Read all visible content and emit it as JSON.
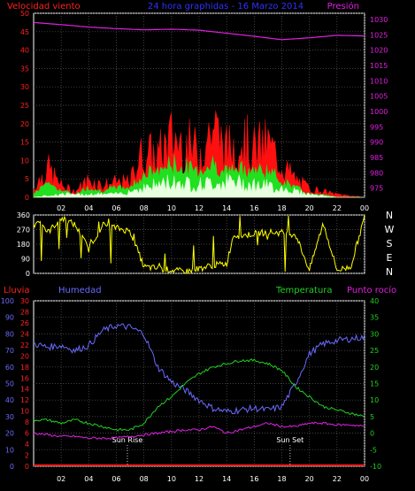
{
  "colors": {
    "background": "#000000",
    "frame": "#ffffff",
    "grid": "#5a5a5a",
    "wind_gust": "#ff1010",
    "wind_avg": "#20e020",
    "wind_min": "#e8ffe0",
    "pressure": "#e020e0",
    "direction": "#ffff00",
    "humidity": "#6a6aff",
    "temperature": "#20d020",
    "dewpoint": "#e020e0",
    "rain": "#ff2020",
    "sun_marker": "#ffffff"
  },
  "chart_data": [
    {
      "type": "line",
      "title": "24 hora graphidas - 16 Marzo 2014",
      "left_axis_label": "Velocidad viento",
      "right_axis_label": "Presión",
      "x_ticks": [
        "02",
        "04",
        "06",
        "08",
        "10",
        "12",
        "14",
        "16",
        "18",
        "20",
        "22",
        "00"
      ],
      "x_range": [
        0,
        24
      ],
      "left_ylim": [
        0,
        50
      ],
      "left_ticks": [
        "0",
        "5",
        "10",
        "15",
        "20",
        "25",
        "30",
        "35",
        "40",
        "45",
        "50"
      ],
      "right_ylim": [
        972,
        1032
      ],
      "right_ticks": [
        "975",
        "980",
        "985",
        "990",
        "995",
        "1000",
        "1005",
        "1010",
        "1015",
        "1020",
        "1025",
        "1030"
      ],
      "series": [
        {
          "name": "Presión",
          "axis": "right",
          "x": [
            0,
            2,
            4,
            6,
            8,
            10,
            12,
            14,
            16,
            18,
            20,
            22,
            24
          ],
          "y": [
            1029,
            1028.3,
            1027.5,
            1027,
            1026.6,
            1026.8,
            1026.5,
            1025.5,
            1024.5,
            1023.4,
            1024,
            1024.8,
            1024.6
          ]
        },
        {
          "name": "gust",
          "axis": "left",
          "x": [
            0,
            1,
            2,
            3,
            4,
            5,
            6,
            7,
            7.5,
            8,
            9,
            10,
            11,
            12,
            13,
            14,
            15,
            16,
            17,
            18,
            19,
            20,
            21,
            22,
            24
          ],
          "y": [
            3,
            10,
            4,
            2,
            6,
            4,
            5,
            5,
            12,
            15,
            14,
            20,
            18,
            15,
            24,
            16,
            20,
            16,
            18,
            11,
            6,
            3,
            2,
            1,
            0
          ]
        },
        {
          "name": "avg",
          "axis": "left",
          "x": [
            0,
            1,
            2,
            3,
            4,
            5,
            6,
            7,
            8,
            9,
            10,
            11,
            12,
            13,
            14,
            15,
            16,
            17,
            18,
            19,
            20,
            21,
            22,
            24
          ],
          "y": [
            1,
            5,
            2,
            1,
            3,
            2,
            3,
            3,
            7,
            8,
            10,
            9,
            8,
            10,
            8,
            9,
            8,
            8,
            5,
            3,
            1,
            1,
            0,
            0
          ]
        },
        {
          "name": "min",
          "axis": "left",
          "x": [
            0,
            2,
            4,
            6,
            8,
            10,
            12,
            14,
            16,
            18,
            20,
            22,
            24
          ],
          "y": [
            0,
            1,
            1,
            1,
            3,
            5,
            4,
            5,
            4,
            3,
            1,
            0,
            0
          ]
        }
      ]
    },
    {
      "type": "line",
      "right_axis_label": "N W S E N",
      "x_ticks": [
        "02",
        "04",
        "06",
        "08",
        "10",
        "12",
        "14",
        "16",
        "18",
        "20",
        "22",
        "00"
      ],
      "x_range": [
        0,
        24
      ],
      "ylim": [
        0,
        360
      ],
      "y_ticks": [
        "0",
        "90",
        "180",
        "270",
        "360"
      ],
      "series": [
        {
          "name": "direction",
          "x": [
            0,
            0.5,
            1,
            2,
            3,
            4,
            5,
            6,
            7,
            8,
            9,
            10,
            11,
            12,
            13,
            14,
            14.5,
            15,
            16,
            17,
            18,
            19,
            20,
            21,
            22,
            23,
            24
          ],
          "y": [
            300,
            330,
            250,
            340,
            300,
            150,
            300,
            280,
            260,
            40,
            30,
            20,
            10,
            30,
            50,
            60,
            240,
            230,
            245,
            255,
            250,
            240,
            20,
            310,
            20,
            40,
            350
          ]
        }
      ]
    },
    {
      "type": "line",
      "left_axis_labels": [
        "Lluvia",
        "Humedad"
      ],
      "right_axis_labels": [
        "Temperatura",
        "Punto rocío"
      ],
      "x_ticks": [
        "02",
        "04",
        "06",
        "08",
        "10",
        "12",
        "14",
        "16",
        "18",
        "20",
        "22",
        "00"
      ],
      "x_range": [
        0,
        24
      ],
      "humidity_ylim": [
        0,
        100
      ],
      "humidity_ticks": [
        "0",
        "10",
        "20",
        "30",
        "40",
        "50",
        "60",
        "70",
        "80",
        "90",
        "100"
      ],
      "rain_ylim": [
        0,
        30
      ],
      "rain_ticks": [
        "0",
        "2",
        "4",
        "6",
        "8",
        "10",
        "12",
        "14",
        "16",
        "18",
        "20",
        "22",
        "24",
        "26",
        "28",
        "30"
      ],
      "temp_ylim": [
        -10,
        40
      ],
      "temp_ticks": [
        "-10",
        "-5",
        "0",
        "5",
        "10",
        "15",
        "20",
        "25",
        "30",
        "35",
        "40"
      ],
      "annotations": [
        "Sun Rise",
        "Sun Set"
      ],
      "series": [
        {
          "name": "Humedad",
          "axis": "humidity",
          "x": [
            0,
            1,
            2,
            3,
            4,
            5,
            6,
            7,
            8,
            9,
            10,
            11,
            12,
            13,
            14,
            15,
            16,
            17,
            18,
            19,
            20,
            21,
            22,
            23,
            24
          ],
          "y": [
            74,
            72,
            73,
            70,
            73,
            82,
            85,
            84,
            80,
            60,
            51,
            46,
            40,
            35,
            33,
            34,
            35,
            34,
            36,
            50,
            68,
            74,
            76,
            77,
            78
          ]
        },
        {
          "name": "Temperatura",
          "axis": "temp",
          "x": [
            0,
            1,
            2,
            3,
            4,
            5,
            6,
            7,
            8,
            9,
            10,
            11,
            12,
            13,
            14,
            15,
            16,
            17,
            18,
            19,
            20,
            21,
            22,
            23,
            24
          ],
          "y": [
            4,
            4,
            3,
            4,
            3,
            2,
            1,
            1,
            3,
            8,
            11,
            15,
            18,
            20,
            21,
            22,
            22,
            21,
            19,
            14,
            11,
            8,
            7,
            6,
            5
          ]
        },
        {
          "name": "Punto rocío",
          "axis": "temp",
          "x": [
            0,
            1,
            2,
            3,
            4,
            5,
            6,
            7,
            8,
            9,
            10,
            11,
            12,
            13,
            14,
            15,
            16,
            17,
            18,
            19,
            20,
            21,
            22,
            23,
            24
          ],
          "y": [
            0,
            -0.5,
            -1,
            -1,
            -1.5,
            -1.5,
            -1.5,
            -1,
            -0.5,
            0,
            0.5,
            1,
            1,
            2,
            0,
            1,
            2,
            3,
            2,
            2,
            3,
            3,
            2.5,
            2.5,
            2
          ]
        },
        {
          "name": "Lluvia",
          "axis": "rain",
          "x": [
            0,
            24
          ],
          "y": [
            0,
            0
          ]
        }
      ],
      "sun_rise_hour": 6.8,
      "sun_set_hour": 18.6
    }
  ]
}
